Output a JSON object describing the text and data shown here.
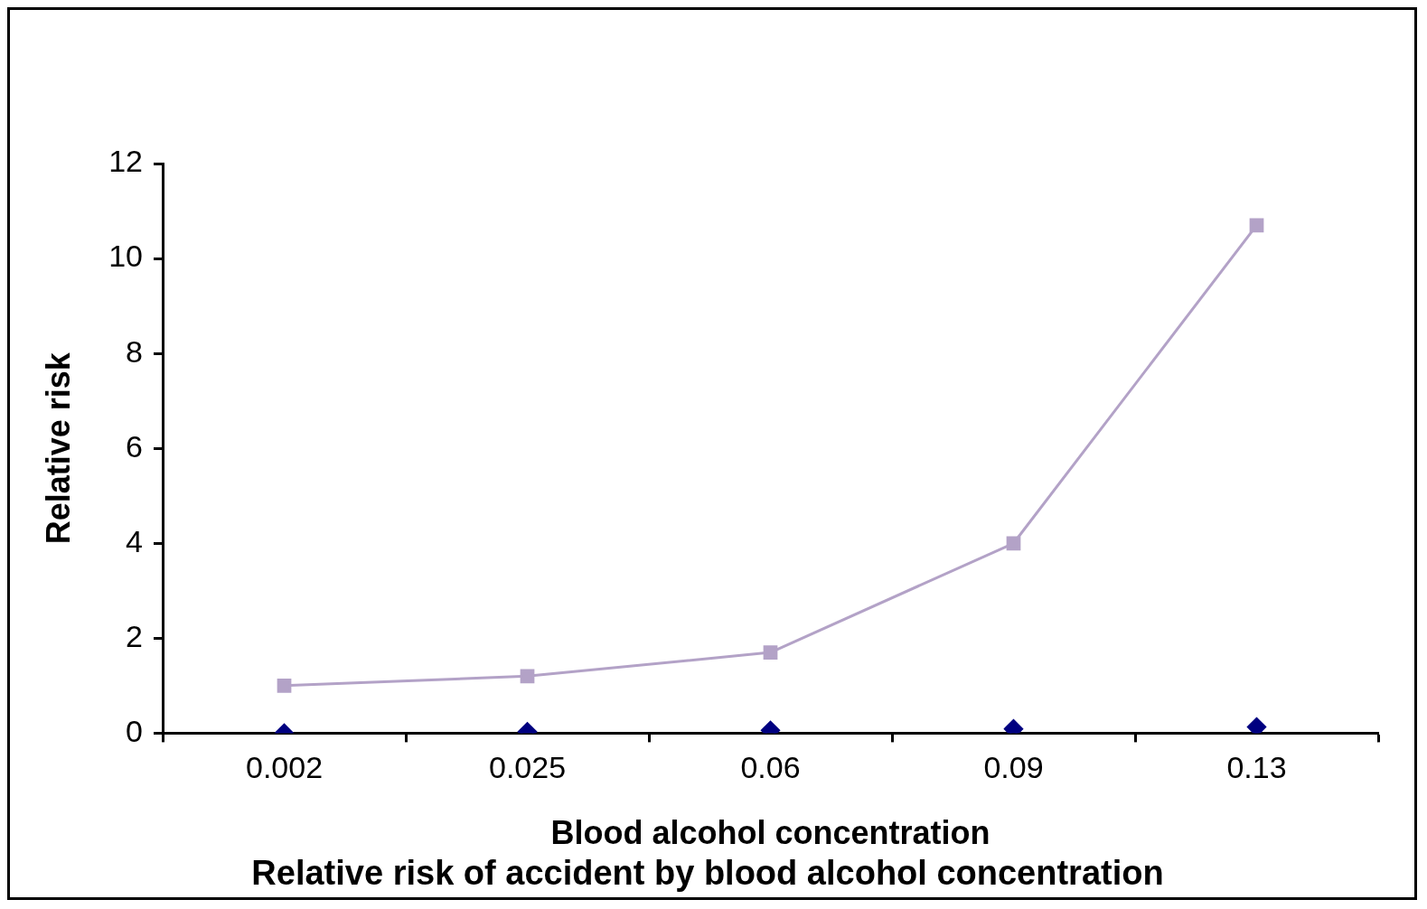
{
  "chart_data": {
    "type": "line",
    "title": "Relative risk of accident by blood alcohol concentration",
    "xlabel": "Blood alcohol concentration",
    "ylabel": "Relative risk",
    "categories": [
      "0.002",
      "0.025",
      "0.06",
      "0.09",
      "0.13"
    ],
    "series": [
      {
        "type": "scatter",
        "color": "#000080",
        "marker": "diamond",
        "values": [
          0,
          0.03,
          0.06,
          0.09,
          0.13
        ]
      },
      {
        "type": "line",
        "color": "#b3a2c7",
        "marker": "square",
        "values": [
          1.0,
          1.2,
          1.7,
          4.0,
          10.7
        ]
      }
    ],
    "ylim": [
      0,
      12
    ],
    "yticks": [
      0,
      2,
      4,
      6,
      8,
      10,
      12
    ],
    "grid": false,
    "legend": false
  }
}
